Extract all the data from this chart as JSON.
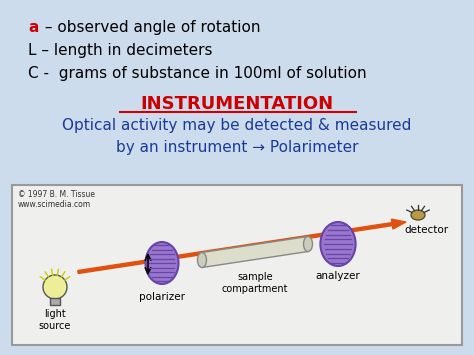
{
  "bg_color": "#cddcec",
  "title_text": "INSTRUMENTATION",
  "title_color": "#cc0000",
  "title_fontsize": 13,
  "line1_a": "a",
  "line1_rest": " – observed angle of rotation",
  "line2": "L – length in decimeters",
  "line3": "C -  grams of substance in 100ml of solution",
  "text_color_main": "#000000",
  "text_color_a": "#cc0000",
  "text_color_blue": "#1a3a99",
  "body_text": "Optical activity may be detected & measured\nby an instrument → Polarimeter",
  "body_fontsize": 11,
  "arrow_color": "#e05010",
  "polarizer_color": "#9977cc",
  "polarizer_hatch_color": "#6644aa",
  "copyright_text": "© 1997 B. M. Tissue\nwww.scimedia.com",
  "label_light_source": "light\nsource",
  "label_polarizer": "polarizer",
  "label_sample": "sample\ncompartment",
  "label_analyzer": "analyzer",
  "label_detector": "detector"
}
